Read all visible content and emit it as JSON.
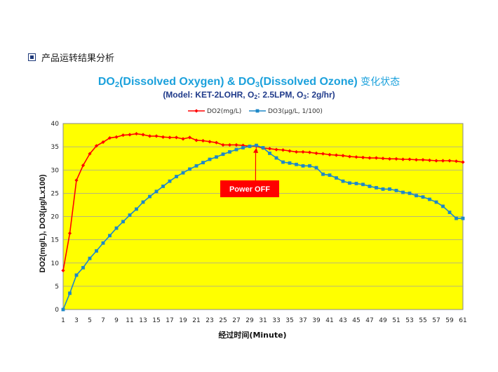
{
  "section": {
    "heading": "产品运转结果分析",
    "icon": "square-bullet-icon"
  },
  "title": {
    "part1": "DO",
    "part1_sub": "2",
    "part2": "(Dissolved Oxygen) & DO",
    "part2_sub": "3",
    "part3": "(Dissolved Ozone) ",
    "part3_cn": "变化状态"
  },
  "subtitle": {
    "part1": "(Model: KET-2LOHR, O",
    "part1_sub": "2",
    "part2": ": 2.5LPM, O",
    "part2_sub": "3",
    "part3": ": 2g/hr)"
  },
  "chart_data": {
    "type": "line",
    "xlabel": "经过时间(Minute)",
    "ylabel": "DO2(mg/L), DO3(μg/Lx100)",
    "ylim": [
      0,
      40
    ],
    "yticks": [
      0,
      5,
      10,
      15,
      20,
      25,
      30,
      35,
      40
    ],
    "x": [
      1,
      2,
      3,
      4,
      5,
      6,
      7,
      8,
      9,
      10,
      11,
      12,
      13,
      14,
      15,
      16,
      17,
      18,
      19,
      20,
      21,
      22,
      23,
      24,
      25,
      26,
      27,
      28,
      29,
      30,
      31,
      32,
      33,
      34,
      35,
      36,
      37,
      38,
      39,
      40,
      41,
      42,
      43,
      44,
      45,
      46,
      47,
      48,
      49,
      50,
      51,
      52,
      53,
      54,
      55,
      56,
      57,
      58,
      59,
      60,
      61
    ],
    "xtick_labels": [
      "1",
      "3",
      "5",
      "7",
      "9",
      "11",
      "13",
      "15",
      "17",
      "19",
      "21",
      "23",
      "25",
      "27",
      "29",
      "31",
      "33",
      "35",
      "37",
      "39",
      "41",
      "43",
      "45",
      "47",
      "49",
      "51",
      "53",
      "55",
      "57",
      "59",
      "61"
    ],
    "grid": true,
    "legend_position": "top",
    "plot_background": "#ffff00",
    "series": [
      {
        "name": "DO2(mg/L)",
        "color": "#ff0000",
        "marker": "diamond",
        "values": [
          8.4,
          16.4,
          27.8,
          31.0,
          33.5,
          35.2,
          36.0,
          36.9,
          37.1,
          37.5,
          37.6,
          37.8,
          37.6,
          37.3,
          37.3,
          37.1,
          37.0,
          37.0,
          36.7,
          37.0,
          36.4,
          36.3,
          36.1,
          35.9,
          35.4,
          35.4,
          35.4,
          35.3,
          35.1,
          35.1,
          34.7,
          34.6,
          34.4,
          34.3,
          34.1,
          33.9,
          33.9,
          33.8,
          33.6,
          33.5,
          33.3,
          33.2,
          33.1,
          32.9,
          32.8,
          32.7,
          32.6,
          32.6,
          32.5,
          32.4,
          32.4,
          32.3,
          32.3,
          32.2,
          32.2,
          32.1,
          32.0,
          32.0,
          32.0,
          31.9,
          31.7
        ]
      },
      {
        "name": "DO3(μg/L, 1/100)",
        "color": "#1e88c8",
        "marker": "square",
        "values": [
          0.0,
          3.5,
          7.4,
          9.0,
          11.0,
          12.6,
          14.3,
          15.9,
          17.5,
          18.9,
          20.3,
          21.6,
          23.1,
          24.3,
          25.4,
          26.5,
          27.6,
          28.6,
          29.4,
          30.2,
          30.9,
          31.6,
          32.3,
          32.8,
          33.4,
          33.9,
          34.4,
          34.8,
          35.1,
          35.3,
          34.8,
          33.6,
          32.6,
          31.7,
          31.5,
          31.2,
          30.9,
          30.9,
          30.5,
          29.1,
          28.9,
          28.3,
          27.6,
          27.2,
          27.1,
          26.9,
          26.5,
          26.2,
          25.9,
          25.9,
          25.6,
          25.2,
          25.0,
          24.5,
          24.2,
          23.7,
          23.1,
          22.2,
          20.9,
          19.6,
          19.6
        ]
      }
    ],
    "annotation": {
      "text": "Power OFF",
      "x": 30,
      "y": 35.1,
      "color": "#ff0000"
    }
  }
}
